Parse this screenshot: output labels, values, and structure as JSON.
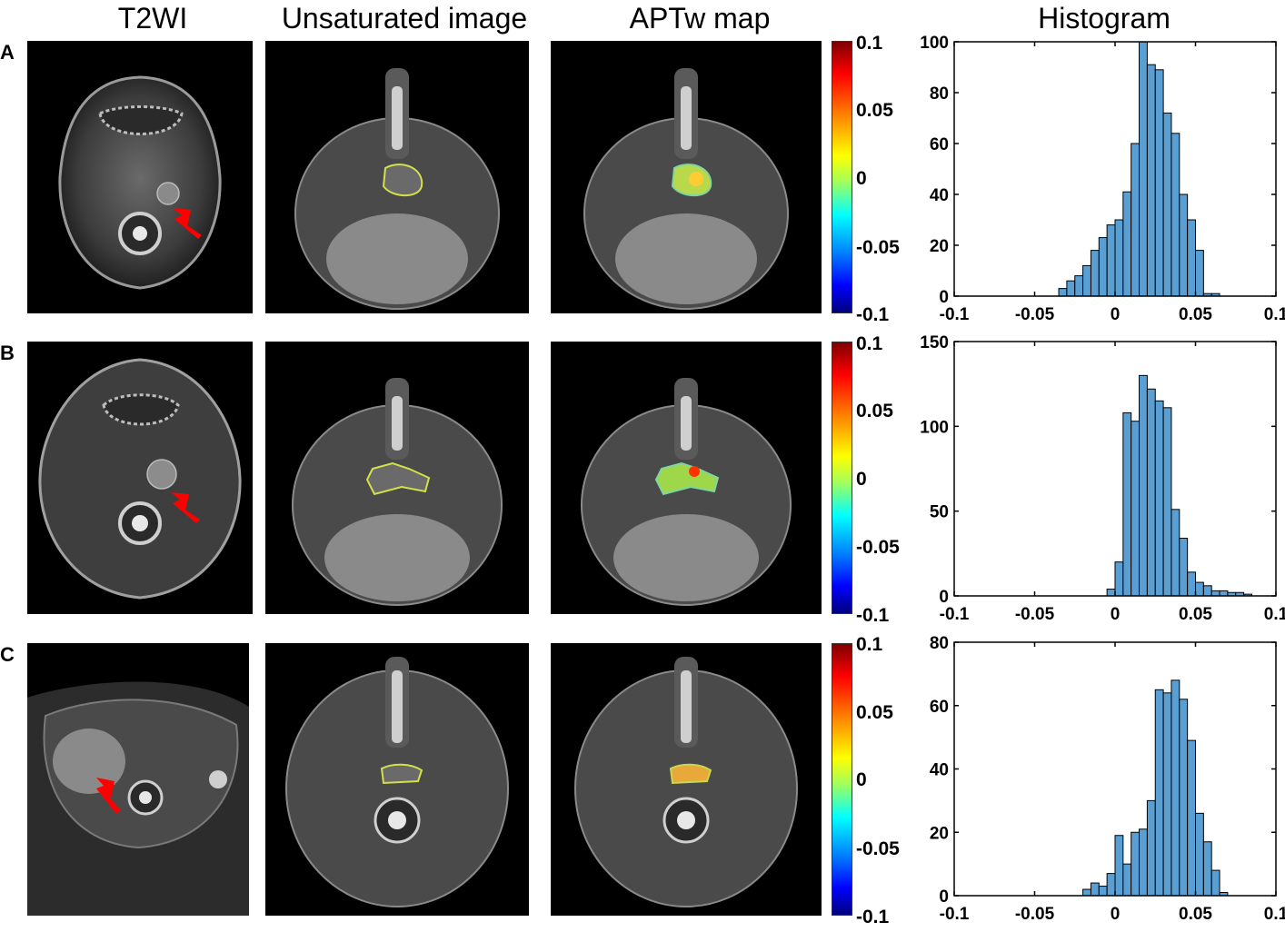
{
  "columns": [
    "T2WI",
    "Unsaturated image",
    "APTw map",
    "Histogram"
  ],
  "rows": [
    {
      "label": "A"
    },
    {
      "label": "B"
    },
    {
      "label": "C"
    }
  ],
  "colorbar": {
    "ticks": [
      "0.1",
      "0.05",
      "0",
      "-0.05",
      "-0.1"
    ],
    "colors": [
      "#7f0000",
      "#ff0000",
      "#ff8a00",
      "#ffff00",
      "#00ffff",
      "#0080ff",
      "#0000ff",
      "#00007f"
    ]
  },
  "annotation": {
    "arrow_color": "#ff0000",
    "roi_color": "#d4e04a",
    "bar_color": "#5a9fd4"
  },
  "chart_data": [
    {
      "type": "bar",
      "title": "Histogram",
      "xlim": [
        -0.1,
        0.1
      ],
      "ylim": [
        0,
        100
      ],
      "xticks": [
        "-0.1",
        "-0.05",
        "0",
        "0.05",
        "0.1"
      ],
      "yticks": [
        "0",
        "20",
        "40",
        "60",
        "80",
        "100"
      ],
      "bin_start": -0.035,
      "bin_width": 0.005,
      "values": [
        3,
        6,
        8,
        12,
        18,
        23,
        28,
        30,
        41,
        60,
        100,
        91,
        89,
        72,
        64,
        40,
        30,
        18,
        1,
        1
      ]
    },
    {
      "type": "bar",
      "title": "",
      "xlim": [
        -0.1,
        0.1
      ],
      "ylim": [
        0,
        150
      ],
      "xticks": [
        "-0.1",
        "-0.05",
        "0",
        "0.05",
        "0.1"
      ],
      "yticks": [
        "0",
        "50",
        "100",
        "150"
      ],
      "bin_start": -0.005,
      "bin_width": 0.005,
      "values": [
        4,
        20,
        108,
        103,
        130,
        122,
        115,
        111,
        51,
        34,
        14,
        8,
        6,
        3,
        3,
        2,
        2,
        1
      ]
    },
    {
      "type": "bar",
      "title": "",
      "xlim": [
        -0.1,
        0.1
      ],
      "ylim": [
        0,
        80
      ],
      "xticks": [
        "-0.1",
        "-0.05",
        "0",
        "0.05",
        "0.1"
      ],
      "yticks": [
        "0",
        "20",
        "40",
        "60",
        "80"
      ],
      "bin_start": -0.02,
      "bin_width": 0.005,
      "values": [
        2,
        4,
        3,
        7,
        19,
        10,
        20,
        21,
        30,
        65,
        64,
        68,
        62,
        49,
        26,
        17,
        8,
        1
      ]
    }
  ]
}
